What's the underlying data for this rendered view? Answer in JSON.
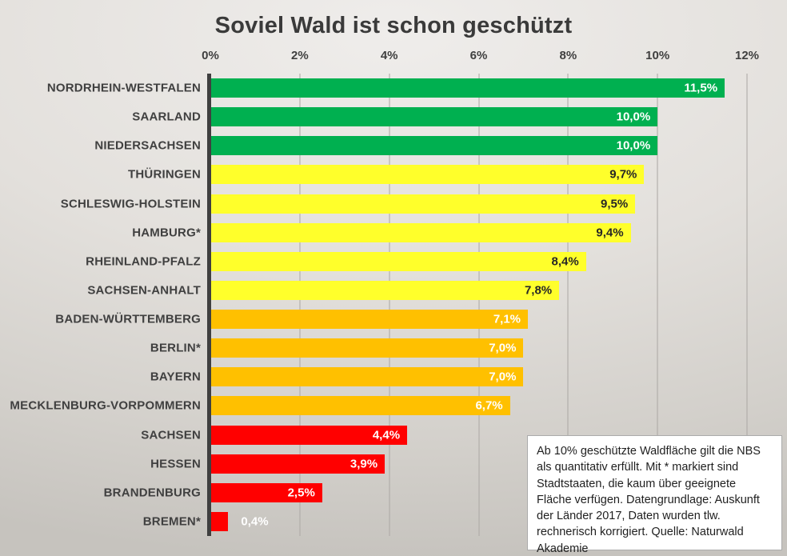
{
  "title": "Soviel Wald ist schon geschützt",
  "note": "Ab 10% geschützte Waldfläche gilt die NBS als quantitativ erfüllt. Mit * markiert sind Stadtstaaten, die kaum über geeignete Fläche verfügen. Datengrundlage: Auskunft der Länder 2017, Daten wurden tlw. rechnerisch korrigiert. Quelle: Naturwald Akademie",
  "colors": {
    "green": "#00B050",
    "yellow": "#FFFF2B",
    "orange": "#FFC000",
    "red": "#FF0000",
    "axis": "#3f3f3f",
    "label_dark": "#262626",
    "label_light": "#ffffff"
  },
  "chart_data": {
    "type": "bar",
    "orientation": "horizontal",
    "title": "Soviel Wald ist schon geschützt",
    "xlabel": "",
    "ylabel": "",
    "xlim": [
      0,
      12
    ],
    "x_ticks": [
      "0%",
      "2%",
      "4%",
      "6%",
      "8%",
      "10%",
      "12%"
    ],
    "grid": true,
    "legend": false,
    "categories": [
      "NORDRHEIN-WESTFALEN",
      "SAARLAND",
      "NIEDERSACHSEN",
      "THÜRINGEN",
      "SCHLESWIG-HOLSTEIN",
      "HAMBURG*",
      "RHEINLAND-PFALZ",
      "SACHSEN-ANHALT",
      "BADEN-WÜRTTEMBERG",
      "BERLIN*",
      "BAYERN",
      "MECKLENBURG-VORPOMMERN",
      "SACHSEN",
      "HESSEN",
      "BRANDENBURG",
      "BREMEN*"
    ],
    "values": [
      11.5,
      10.0,
      10.0,
      9.7,
      9.5,
      9.4,
      8.4,
      7.8,
      7.1,
      7.0,
      7.0,
      6.7,
      4.4,
      3.9,
      2.5,
      0.4
    ],
    "bars": [
      {
        "label": "NORDRHEIN-WESTFALEN",
        "value": 11.5,
        "display": "11,5%",
        "color": "green",
        "text": "light",
        "label_inside": true
      },
      {
        "label": "SAARLAND",
        "value": 10.0,
        "display": "10,0%",
        "color": "green",
        "text": "light",
        "label_inside": true
      },
      {
        "label": "NIEDERSACHSEN",
        "value": 10.0,
        "display": "10,0%",
        "color": "green",
        "text": "light",
        "label_inside": true
      },
      {
        "label": "THÜRINGEN",
        "value": 9.7,
        "display": "9,7%",
        "color": "yellow",
        "text": "dark",
        "label_inside": true
      },
      {
        "label": "SCHLESWIG-HOLSTEIN",
        "value": 9.5,
        "display": "9,5%",
        "color": "yellow",
        "text": "dark",
        "label_inside": true
      },
      {
        "label": "HAMBURG*",
        "value": 9.4,
        "display": "9,4%",
        "color": "yellow",
        "text": "dark",
        "label_inside": true
      },
      {
        "label": "RHEINLAND-PFALZ",
        "value": 8.4,
        "display": "8,4%",
        "color": "yellow",
        "text": "dark",
        "label_inside": true
      },
      {
        "label": "SACHSEN-ANHALT",
        "value": 7.8,
        "display": "7,8%",
        "color": "yellow",
        "text": "dark",
        "label_inside": true
      },
      {
        "label": "BADEN-WÜRTTEMBERG",
        "value": 7.1,
        "display": "7,1%",
        "color": "orange",
        "text": "light",
        "label_inside": true
      },
      {
        "label": "BERLIN*",
        "value": 7.0,
        "display": "7,0%",
        "color": "orange",
        "text": "light",
        "label_inside": true
      },
      {
        "label": "BAYERN",
        "value": 7.0,
        "display": "7,0%",
        "color": "orange",
        "text": "light",
        "label_inside": true
      },
      {
        "label": "MECKLENBURG-VORPOMMERN",
        "value": 6.7,
        "display": "6,7%",
        "color": "orange",
        "text": "light",
        "label_inside": true
      },
      {
        "label": "SACHSEN",
        "value": 4.4,
        "display": "4,4%",
        "color": "red",
        "text": "light",
        "label_inside": true
      },
      {
        "label": "HESSEN",
        "value": 3.9,
        "display": "3,9%",
        "color": "red",
        "text": "light",
        "label_inside": true
      },
      {
        "label": "BRANDENBURG",
        "value": 2.5,
        "display": "2,5%",
        "color": "red",
        "text": "light",
        "label_inside": true
      },
      {
        "label": "BREMEN*",
        "value": 0.4,
        "display": "0,4%",
        "color": "red",
        "text": "light",
        "label_inside": false
      }
    ]
  }
}
